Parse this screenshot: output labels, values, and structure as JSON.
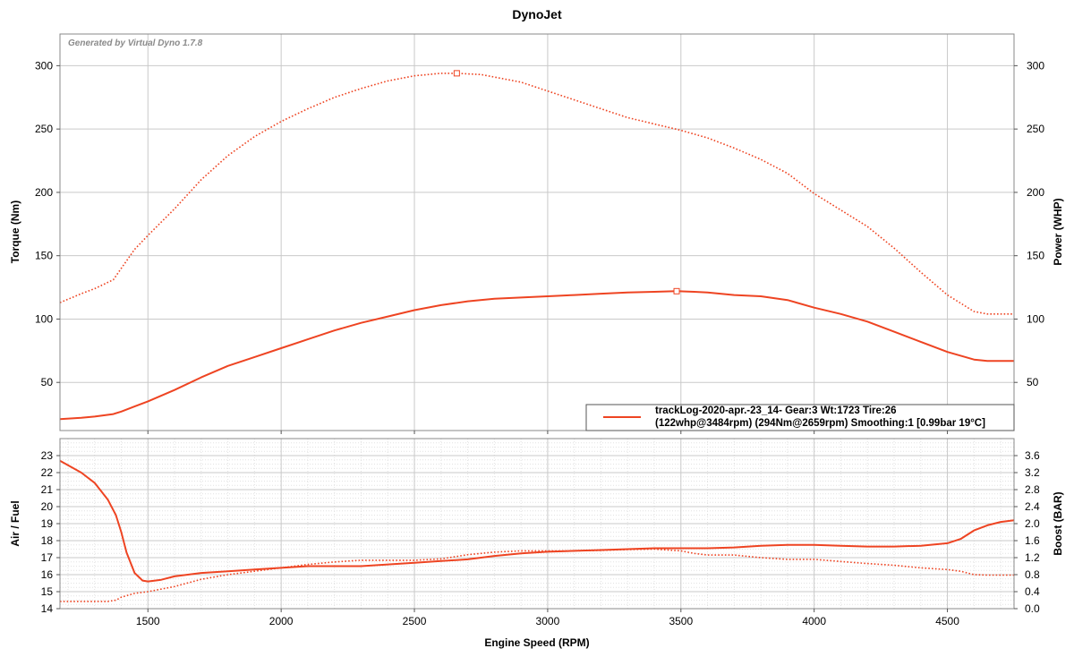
{
  "chart_data": [
    {
      "type": "line",
      "title": "DynoJet",
      "watermark": "Generated by Virtual Dyno 1.7.8",
      "xlabel": "Engine Speed (RPM)",
      "ylabel_left": "Torque (Nm)",
      "ylabel_right": "Power (WHP)",
      "xlim": [
        1170,
        4750
      ],
      "ylim": [
        12,
        325
      ],
      "yticks_left": [
        50,
        100,
        150,
        200,
        250,
        300
      ],
      "yticks_right": [
        50,
        100,
        150,
        200,
        250,
        300
      ],
      "grid": true,
      "legend_position": "bottom-right",
      "legend": {
        "line1": "trackLog-2020-apr.-23_14- Gear:3 Wt:1723 Tire:26",
        "line2": "(122whp@3484rpm) (294Nm@2659rpm) Smoothing:1 [0.99bar 19°C]"
      },
      "series": [
        {
          "key": "torque",
          "axis": "left",
          "style": "dotted",
          "peak": {
            "x": 2659,
            "y": 294
          },
          "x": [
            1170,
            1250,
            1300,
            1370,
            1400,
            1450,
            1500,
            1600,
            1700,
            1800,
            1900,
            2000,
            2100,
            2200,
            2300,
            2400,
            2500,
            2600,
            2659,
            2750,
            2800,
            2900,
            3000,
            3100,
            3200,
            3300,
            3400,
            3500,
            3600,
            3700,
            3800,
            3900,
            4000,
            4100,
            4200,
            4300,
            4400,
            4500,
            4600,
            4650,
            4700,
            4750
          ],
          "y": [
            113,
            120,
            124,
            131,
            140,
            155,
            166,
            187,
            210,
            229,
            244,
            256,
            266,
            275,
            282,
            288,
            292,
            294,
            294,
            293,
            291,
            287,
            280,
            273,
            266,
            259,
            254,
            249,
            243,
            235,
            226,
            215,
            199,
            186,
            173,
            156,
            137,
            119,
            106,
            104,
            104,
            104
          ]
        },
        {
          "key": "power",
          "axis": "right",
          "style": "solid",
          "peak": {
            "x": 3484,
            "y": 122
          },
          "x": [
            1170,
            1250,
            1300,
            1370,
            1400,
            1450,
            1500,
            1600,
            1700,
            1800,
            1900,
            2000,
            2100,
            2200,
            2300,
            2400,
            2500,
            2600,
            2700,
            2800,
            2900,
            3000,
            3100,
            3200,
            3300,
            3400,
            3484,
            3550,
            3600,
            3700,
            3800,
            3900,
            4000,
            4100,
            4200,
            4300,
            4400,
            4500,
            4600,
            4650,
            4700,
            4750
          ],
          "y": [
            21,
            22,
            23,
            25,
            27,
            31,
            35,
            44,
            54,
            63,
            70,
            77,
            84,
            91,
            97,
            102,
            107,
            111,
            114,
            116,
            117,
            118,
            119,
            120,
            121,
            121.5,
            122,
            121.5,
            121,
            119,
            118,
            115,
            109,
            104,
            98,
            90,
            82,
            74,
            68,
            67,
            67,
            67
          ]
        }
      ]
    },
    {
      "type": "line",
      "xlabel": "Engine Speed (RPM)",
      "ylabel_left": "Air / Fuel",
      "ylabel_right": "Boost (BAR)",
      "xlim": [
        1170,
        4750
      ],
      "xticks": [
        1500,
        2000,
        2500,
        3000,
        3500,
        4000,
        4500
      ],
      "ylim_left": [
        14,
        24
      ],
      "yticks_left": [
        14,
        15,
        16,
        17,
        18,
        19,
        20,
        21,
        22,
        23
      ],
      "ylim_right": [
        0,
        4
      ],
      "yticks_right": [
        "0.0",
        "0.4",
        "0.8",
        "1.2",
        "1.6",
        "2.0",
        "2.4",
        "2.8",
        "3.2",
        "3.6"
      ],
      "grid": true,
      "series": [
        {
          "key": "afr",
          "axis": "left",
          "style": "solid",
          "x": [
            1170,
            1250,
            1300,
            1350,
            1380,
            1400,
            1420,
            1450,
            1480,
            1500,
            1550,
            1600,
            1700,
            1800,
            1900,
            2000,
            2100,
            2200,
            2300,
            2400,
            2500,
            2600,
            2700,
            2800,
            2900,
            3000,
            3100,
            3200,
            3300,
            3400,
            3500,
            3600,
            3700,
            3800,
            3900,
            4000,
            4100,
            4200,
            4300,
            4400,
            4500,
            4550,
            4600,
            4650,
            4700,
            4750
          ],
          "y": [
            22.7,
            22.0,
            21.4,
            20.4,
            19.5,
            18.5,
            17.3,
            16.1,
            15.65,
            15.6,
            15.7,
            15.9,
            16.1,
            16.2,
            16.3,
            16.4,
            16.5,
            16.5,
            16.5,
            16.6,
            16.7,
            16.8,
            16.9,
            17.1,
            17.25,
            17.35,
            17.4,
            17.45,
            17.5,
            17.55,
            17.55,
            17.55,
            17.6,
            17.7,
            17.75,
            17.75,
            17.7,
            17.65,
            17.65,
            17.7,
            17.85,
            18.1,
            18.6,
            18.9,
            19.1,
            19.2
          ]
        },
        {
          "key": "boost",
          "axis": "right",
          "style": "dotted",
          "x": [
            1170,
            1250,
            1300,
            1350,
            1380,
            1400,
            1450,
            1500,
            1600,
            1700,
            1800,
            1900,
            2000,
            2100,
            2200,
            2300,
            2400,
            2500,
            2600,
            2700,
            2800,
            2900,
            3000,
            3100,
            3200,
            3300,
            3400,
            3500,
            3550,
            3600,
            3700,
            3800,
            3900,
            4000,
            4100,
            4200,
            4300,
            4400,
            4500,
            4550,
            4600,
            4650,
            4700,
            4750
          ],
          "y": [
            0.17,
            0.17,
            0.17,
            0.17,
            0.2,
            0.27,
            0.36,
            0.4,
            0.52,
            0.69,
            0.8,
            0.88,
            0.96,
            1.04,
            1.1,
            1.14,
            1.14,
            1.14,
            1.17,
            1.27,
            1.33,
            1.36,
            1.36,
            1.36,
            1.37,
            1.39,
            1.4,
            1.36,
            1.3,
            1.26,
            1.26,
            1.2,
            1.16,
            1.16,
            1.11,
            1.06,
            1.02,
            0.96,
            0.92,
            0.88,
            0.8,
            0.79,
            0.79,
            0.79
          ]
        }
      ]
    }
  ],
  "colors": {
    "line": "#ee4422",
    "grid_major": "#c9c9c9",
    "grid_minor": "#e2e2e2",
    "frame": "#888888"
  }
}
